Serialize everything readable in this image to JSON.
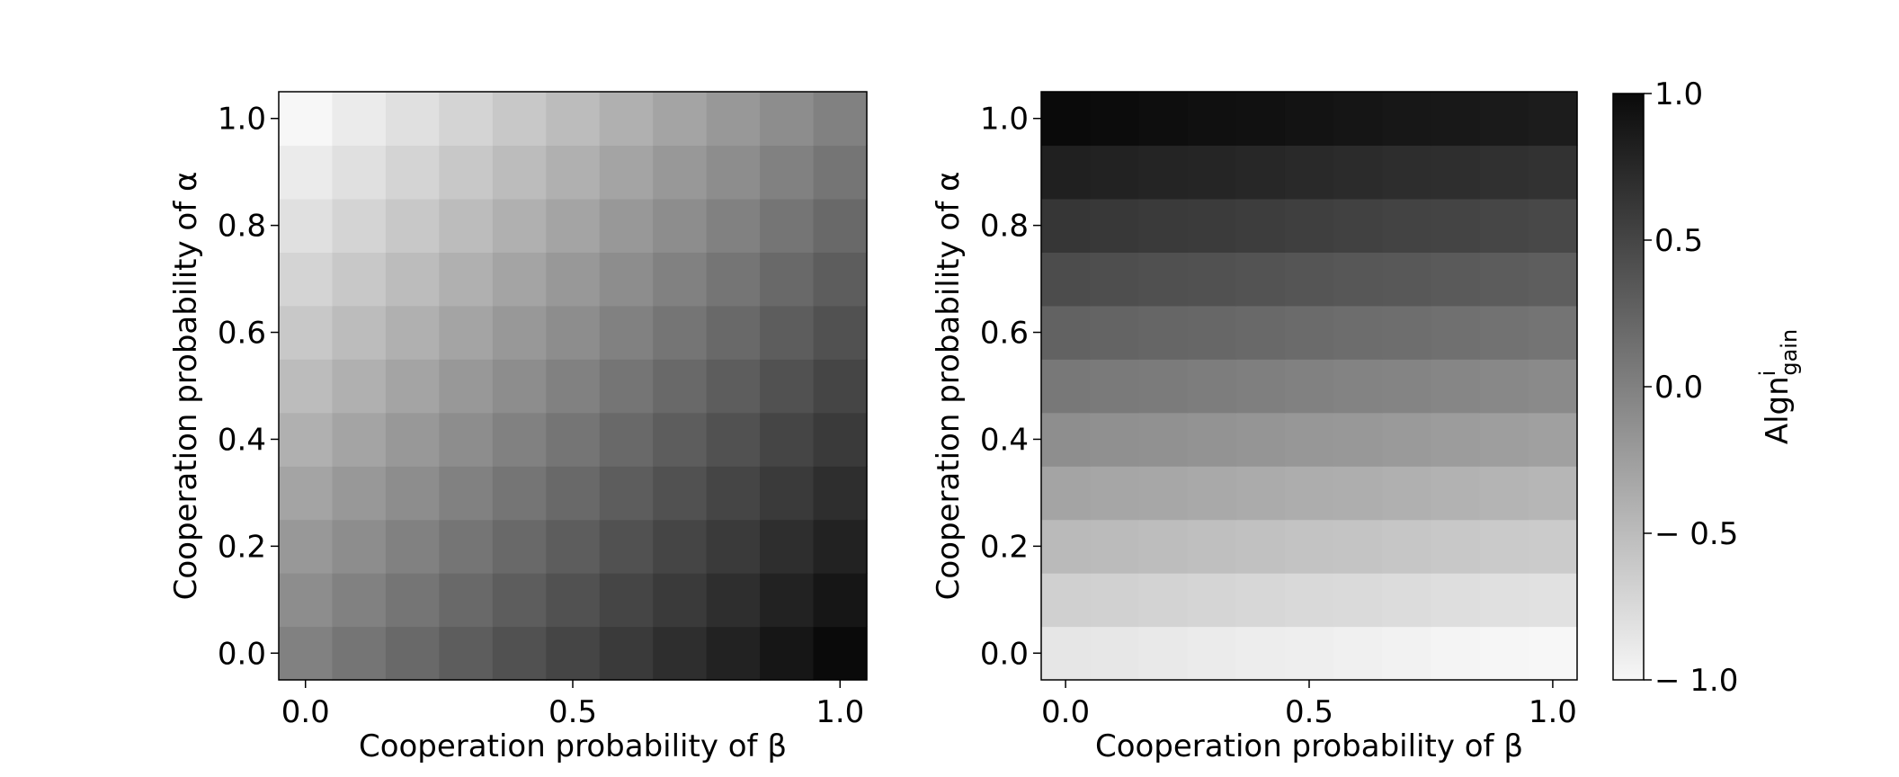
{
  "chart_data": [
    {
      "type": "heatmap",
      "xlabel": "Cooperation probability of β",
      "ylabel": "Cooperation probability of α",
      "x_values": [
        0.0,
        0.1,
        0.2,
        0.3,
        0.4,
        0.5,
        0.6,
        0.7,
        0.8,
        0.9,
        1.0
      ],
      "y_values": [
        0.0,
        0.1,
        0.2,
        0.3,
        0.4,
        0.5,
        0.6,
        0.7,
        0.8,
        0.9,
        1.0
      ],
      "x_ticks": [
        "0.0",
        "0.5",
        "1.0"
      ],
      "y_ticks": [
        "0.0",
        "0.2",
        "0.4",
        "0.6",
        "0.8",
        "1.0"
      ],
      "xlim": [
        -0.05,
        1.05
      ],
      "ylim": [
        -0.05,
        1.05
      ],
      "value_range": [
        -1.0,
        1.0
      ],
      "values_formula": "z = beta - alpha",
      "values": [
        [
          0.0,
          0.1,
          0.2,
          0.3,
          0.4,
          0.5,
          0.6,
          0.7,
          0.8,
          0.9,
          1.0
        ],
        [
          -0.1,
          0.0,
          0.1,
          0.2,
          0.3,
          0.4,
          0.5,
          0.6,
          0.7,
          0.8,
          0.9
        ],
        [
          -0.2,
          -0.1,
          0.0,
          0.1,
          0.2,
          0.3,
          0.4,
          0.5,
          0.6,
          0.7,
          0.8
        ],
        [
          -0.3,
          -0.2,
          -0.1,
          0.0,
          0.1,
          0.2,
          0.3,
          0.4,
          0.5,
          0.6,
          0.7
        ],
        [
          -0.4,
          -0.3,
          -0.2,
          -0.1,
          0.0,
          0.1,
          0.2,
          0.3,
          0.4,
          0.5,
          0.6
        ],
        [
          -0.5,
          -0.4,
          -0.3,
          -0.2,
          -0.1,
          0.0,
          0.1,
          0.2,
          0.3,
          0.4,
          0.5
        ],
        [
          -0.6,
          -0.5,
          -0.4,
          -0.3,
          -0.2,
          -0.1,
          0.0,
          0.1,
          0.2,
          0.3,
          0.4
        ],
        [
          -0.7,
          -0.6,
          -0.5,
          -0.4,
          -0.3,
          -0.2,
          -0.1,
          0.0,
          0.1,
          0.2,
          0.3
        ],
        [
          -0.8,
          -0.7,
          -0.6,
          -0.5,
          -0.4,
          -0.3,
          -0.2,
          -0.1,
          0.0,
          0.1,
          0.2
        ],
        [
          -0.9,
          -0.8,
          -0.7,
          -0.6,
          -0.5,
          -0.4,
          -0.3,
          -0.2,
          -0.1,
          0.0,
          0.1
        ],
        [
          -1.0,
          -0.9,
          -0.8,
          -0.7,
          -0.6,
          -0.5,
          -0.4,
          -0.3,
          -0.2,
          -0.1,
          0.0
        ]
      ]
    },
    {
      "type": "heatmap",
      "xlabel": "Cooperation probability of β",
      "ylabel": "Cooperation probability of α",
      "x_values": [
        0.0,
        0.1,
        0.2,
        0.3,
        0.4,
        0.5,
        0.6,
        0.7,
        0.8,
        0.9,
        1.0
      ],
      "y_values": [
        0.0,
        0.1,
        0.2,
        0.3,
        0.4,
        0.5,
        0.6,
        0.7,
        0.8,
        0.9,
        1.0
      ],
      "x_ticks": [
        "0.0",
        "0.5",
        "1.0"
      ],
      "y_ticks": [
        "0.0",
        "0.2",
        "0.4",
        "0.6",
        "0.8",
        "1.0"
      ],
      "xlim": [
        -0.05,
        1.05
      ],
      "ylim": [
        -0.05,
        1.05
      ],
      "value_range": [
        -1.0,
        1.0
      ],
      "values_formula": "z = (alpha - beta) * 0.15 + (2 * alpha - 1) * 0.85",
      "values": [
        [
          -0.85,
          -0.865,
          -0.88,
          -0.895,
          -0.91,
          -0.925,
          -0.94,
          -0.955,
          -0.97,
          -0.985,
          -1.0
        ],
        [
          -0.665,
          -0.68,
          -0.695,
          -0.71,
          -0.725,
          -0.74,
          -0.755,
          -0.77,
          -0.785,
          -0.8,
          -0.815
        ],
        [
          -0.48,
          -0.495,
          -0.51,
          -0.525,
          -0.54,
          -0.555,
          -0.57,
          -0.585,
          -0.6,
          -0.615,
          -0.63
        ],
        [
          -0.295,
          -0.31,
          -0.325,
          -0.34,
          -0.355,
          -0.37,
          -0.385,
          -0.4,
          -0.415,
          -0.43,
          -0.445
        ],
        [
          -0.11,
          -0.125,
          -0.14,
          -0.155,
          -0.17,
          -0.185,
          -0.2,
          -0.215,
          -0.23,
          -0.245,
          -0.26
        ],
        [
          0.075,
          0.06,
          0.045,
          0.03,
          0.015,
          0.0,
          -0.015,
          -0.03,
          -0.045,
          -0.06,
          -0.075
        ],
        [
          0.26,
          0.245,
          0.23,
          0.215,
          0.2,
          0.185,
          0.17,
          0.155,
          0.14,
          0.125,
          0.11
        ],
        [
          0.445,
          0.43,
          0.415,
          0.4,
          0.385,
          0.37,
          0.355,
          0.34,
          0.325,
          0.31,
          0.295
        ],
        [
          0.63,
          0.615,
          0.6,
          0.585,
          0.57,
          0.555,
          0.54,
          0.525,
          0.51,
          0.495,
          0.48
        ],
        [
          0.815,
          0.8,
          0.785,
          0.77,
          0.755,
          0.74,
          0.725,
          0.71,
          0.695,
          0.68,
          0.665
        ],
        [
          1.0,
          0.985,
          0.97,
          0.955,
          0.94,
          0.925,
          0.91,
          0.895,
          0.88,
          0.865,
          0.85
        ]
      ]
    }
  ],
  "colorbar": {
    "label_main": "Algn",
    "label_sup": "i",
    "label_sub": "gain",
    "ticks": [
      "1.0",
      "0.5",
      "0.0",
      "− 0.5",
      "− 1.0"
    ],
    "tick_values": [
      1.0,
      0.5,
      0.0,
      -0.5,
      -1.0
    ],
    "range": [
      -1.0,
      1.0
    ],
    "cmap": "Greys",
    "color_low": "#ffffff",
    "color_high": "#000000"
  }
}
